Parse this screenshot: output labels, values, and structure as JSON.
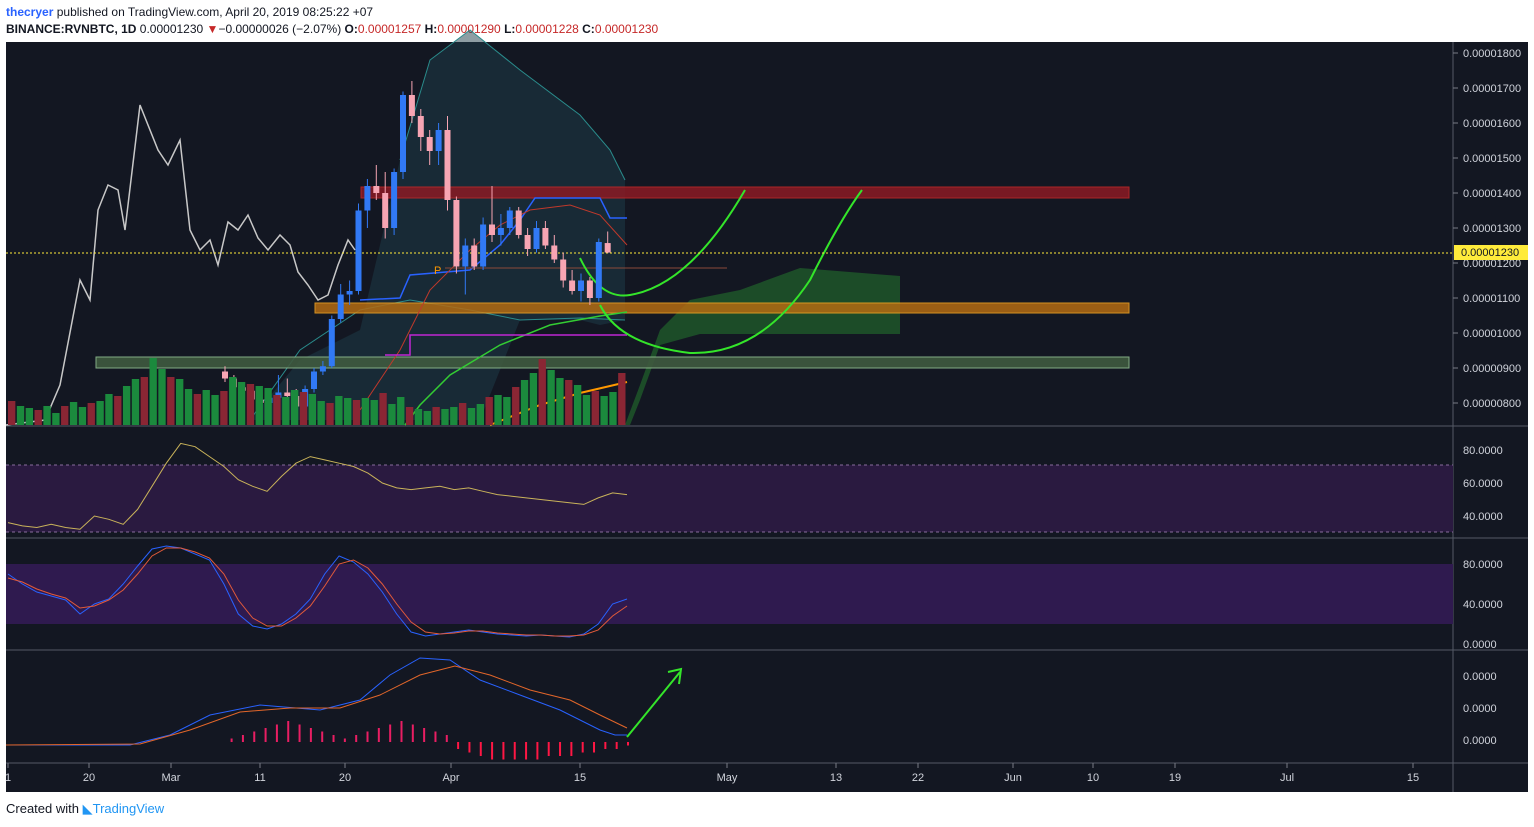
{
  "header": {
    "user": "thecryer",
    "published": "published on TradingView.com, April 20, 2019 08:25:22 +07",
    "symbol": "BINANCE:RVNBTC, 1D",
    "last": "0.00001230",
    "change_arrow": "▼",
    "change": "−0.00000026 (−2.07%)",
    "o_label": "O:",
    "o_value": "0.00001257",
    "h_label": "H:",
    "h_value": "0.00001290",
    "l_label": "L:",
    "l_value": "0.00001228",
    "c_label": "C:",
    "c_value": "0.00001230"
  },
  "footer": {
    "created_with": "Created with",
    "brand": "TradingView"
  },
  "colors": {
    "background": "#131722",
    "up": "#3179f5",
    "down": "#f7a5b3",
    "vol_up": "#1b8a3d",
    "vol_down": "#8a2634",
    "price_line": "#ffeb3b",
    "green_arrow": "#34e52a",
    "rsi_band": "#3b1d59"
  },
  "price_axis": {
    "ticks": [
      "0.00001800",
      "0.00001700",
      "0.00001600",
      "0.00001500",
      "0.00001400",
      "0.00001300",
      "0.00001200",
      "0.00001100",
      "0.00001000",
      "0.00000900",
      "0.00000800"
    ],
    "current": "0.00001230"
  },
  "rsi_axis": {
    "ticks": [
      "80.0000",
      "60.0000",
      "40.0000"
    ]
  },
  "stoch_axis": {
    "ticks": [
      "80.0000",
      "40.0000",
      "0.0000"
    ]
  },
  "macd_axis": {
    "ticks": [
      "0.0000",
      "0.0000",
      "0.0000"
    ]
  },
  "time_axis": {
    "ticks": [
      "1",
      "20",
      "Mar",
      "11",
      "20",
      "Apr",
      "15",
      "May",
      "13",
      "22",
      "Jun",
      "10",
      "19",
      "Jul",
      "15"
    ]
  },
  "annotations": {
    "pivot_label": "P"
  },
  "chart_data": {
    "type": "candlestick",
    "title": "BINANCE:RVNBTC, 1D",
    "ylim": [
      7.6e-06,
      1.84e-05
    ],
    "candles": [
      [
        8.9e-06,
        9.05e-06,
        8.6e-06,
        8.7e-06
      ],
      [
        8.7e-06,
        8.8e-06,
        8.35e-06,
        8.45e-06
      ],
      [
        8.45e-06,
        8.6e-06,
        8.25e-06,
        8.35e-06
      ],
      [
        8.35e-06,
        8.5e-06,
        8e-06,
        8.1e-06
      ],
      [
        8.1e-06,
        8.3e-06,
        7.9e-06,
        8e-06
      ],
      [
        8e-06,
        8.3e-06,
        7.8e-06,
        8.15e-06
      ],
      [
        8.15e-06,
        8.8e-06,
        8e-06,
        8.3e-06
      ],
      [
        8.3e-06,
        8.7e-06,
        8e-06,
        8.2e-06
      ],
      [
        8.2e-06,
        8.4e-06,
        7.8e-06,
        7.9e-06
      ],
      [
        7.9e-06,
        8.5e-06,
        7.7e-06,
        8.4e-06
      ],
      [
        8.4e-06,
        9e-06,
        8.3e-06,
        8.9e-06
      ],
      [
        8.9e-06,
        9.2e-06,
        8.8e-06,
        9.05e-06
      ],
      [
        9.05e-06,
        1.05e-05,
        9e-06,
        1.04e-05
      ],
      [
        1.04e-05,
        1.14e-05,
        1.03e-05,
        1.11e-05
      ],
      [
        1.11e-05,
        1.15e-05,
        1.08e-05,
        1.12e-05
      ],
      [
        1.12e-05,
        1.37e-05,
        1.11e-05,
        1.35e-05
      ],
      [
        1.35e-05,
        1.44e-05,
        1.3e-05,
        1.42e-05
      ],
      [
        1.42e-05,
        1.48e-05,
        1.38e-05,
        1.4e-05
      ],
      [
        1.4e-05,
        1.46e-05,
        1.27e-05,
        1.3e-05
      ],
      [
        1.3e-05,
        1.47e-05,
        1.28e-05,
        1.46e-05
      ],
      [
        1.46e-05,
        1.69e-05,
        1.44e-05,
        1.68e-05
      ],
      [
        1.68e-05,
        1.72e-05,
        1.6e-05,
        1.62e-05
      ],
      [
        1.62e-05,
        1.64e-05,
        1.52e-05,
        1.56e-05
      ],
      [
        1.56e-05,
        1.58e-05,
        1.48e-05,
        1.52e-05
      ],
      [
        1.52e-05,
        1.6e-05,
        1.48e-05,
        1.58e-05
      ],
      [
        1.58e-05,
        1.62e-05,
        1.35e-05,
        1.38e-05
      ],
      [
        1.38e-05,
        1.39e-05,
        1.17e-05,
        1.19e-05
      ],
      [
        1.19e-05,
        1.27e-05,
        1.11e-05,
        1.25e-05
      ],
      [
        1.25e-05,
        1.27e-05,
        1.18e-05,
        1.19e-05
      ],
      [
        1.19e-05,
        1.33e-05,
        1.18e-05,
        1.31e-05
      ],
      [
        1.31e-05,
        1.42e-05,
        1.26e-05,
        1.28e-05
      ],
      [
        1.28e-05,
        1.34e-05,
        1.25e-05,
        1.3e-05
      ],
      [
        1.3e-05,
        1.36e-05,
        1.28e-05,
        1.35e-05
      ],
      [
        1.35e-05,
        1.36e-05,
        1.27e-05,
        1.28e-05
      ],
      [
        1.28e-05,
        1.3e-05,
        1.22e-05,
        1.24e-05
      ],
      [
        1.24e-05,
        1.32e-05,
        1.23e-05,
        1.3e-05
      ],
      [
        1.3e-05,
        1.32e-05,
        1.24e-05,
        1.25e-05
      ],
      [
        1.25e-05,
        1.28e-05,
        1.2e-05,
        1.21e-05
      ],
      [
        1.21e-05,
        1.23e-05,
        1.13e-05,
        1.15e-05
      ],
      [
        1.15e-05,
        1.18e-05,
        1.11e-05,
        1.12e-05
      ],
      [
        1.12e-05,
        1.17e-05,
        1.09e-05,
        1.15e-05
      ],
      [
        1.15e-05,
        1.16e-05,
        1.08e-05,
        1.1e-05
      ],
      [
        1.1e-05,
        1.27e-05,
        1.09e-05,
        1.26e-05
      ],
      [
        1.257e-05,
        1.29e-05,
        1.228e-05,
        1.23e-05
      ]
    ],
    "volume": [
      8,
      6,
      5,
      4,
      5,
      4,
      6,
      7,
      5,
      6,
      8,
      10,
      9,
      12,
      14,
      16,
      22,
      18,
      15,
      14,
      12,
      10,
      11,
      9,
      10,
      16,
      14,
      13,
      12,
      11,
      10,
      9,
      11,
      10,
      9,
      8,
      7,
      9,
      8,
      7,
      9,
      8,
      10,
      6
    ],
    "rsi": [
      36,
      34,
      33,
      35,
      33,
      32,
      40,
      38,
      35,
      44,
      58,
      72,
      84,
      82,
      76,
      70,
      62,
      58,
      55,
      64,
      72,
      76,
      74,
      72,
      70,
      66,
      60,
      57,
      56,
      57,
      58,
      56,
      57,
      55,
      53,
      52,
      51,
      50,
      49,
      48,
      47,
      51,
      54,
      53
    ],
    "stoch_k": [
      70,
      60,
      52,
      48,
      44,
      30,
      40,
      45,
      60,
      78,
      95,
      98,
      96,
      90,
      84,
      60,
      30,
      18,
      15,
      20,
      30,
      45,
      70,
      88,
      82,
      70,
      52,
      30,
      12,
      8,
      10,
      12,
      14,
      12,
      10,
      9,
      8,
      9,
      8,
      7,
      10,
      20,
      40,
      45
    ],
    "stoch_d": [
      66,
      62,
      55,
      50,
      46,
      36,
      38,
      44,
      54,
      70,
      88,
      96,
      96,
      92,
      86,
      70,
      44,
      26,
      18,
      18,
      26,
      38,
      58,
      80,
      84,
      76,
      60,
      40,
      22,
      12,
      10,
      11,
      13,
      13,
      11,
      10,
      9,
      9,
      8,
      8,
      9,
      14,
      28,
      38
    ],
    "macd_hist": [
      0,
      0,
      0,
      0,
      0,
      0,
      0,
      0,
      1,
      2,
      3,
      4,
      5,
      6,
      5,
      4,
      3,
      2,
      1,
      2,
      3,
      4,
      5,
      6,
      5,
      4,
      3,
      2,
      -2,
      -3,
      -4,
      -5,
      -5,
      -5,
      -5,
      -5,
      -4,
      -4,
      -4,
      -3,
      -3,
      -2,
      -2,
      -1
    ],
    "key_levels": [
      1.4e-05,
      1.07e-05,
      9.1e-06
    ],
    "last_price": 1.23e-05
  }
}
